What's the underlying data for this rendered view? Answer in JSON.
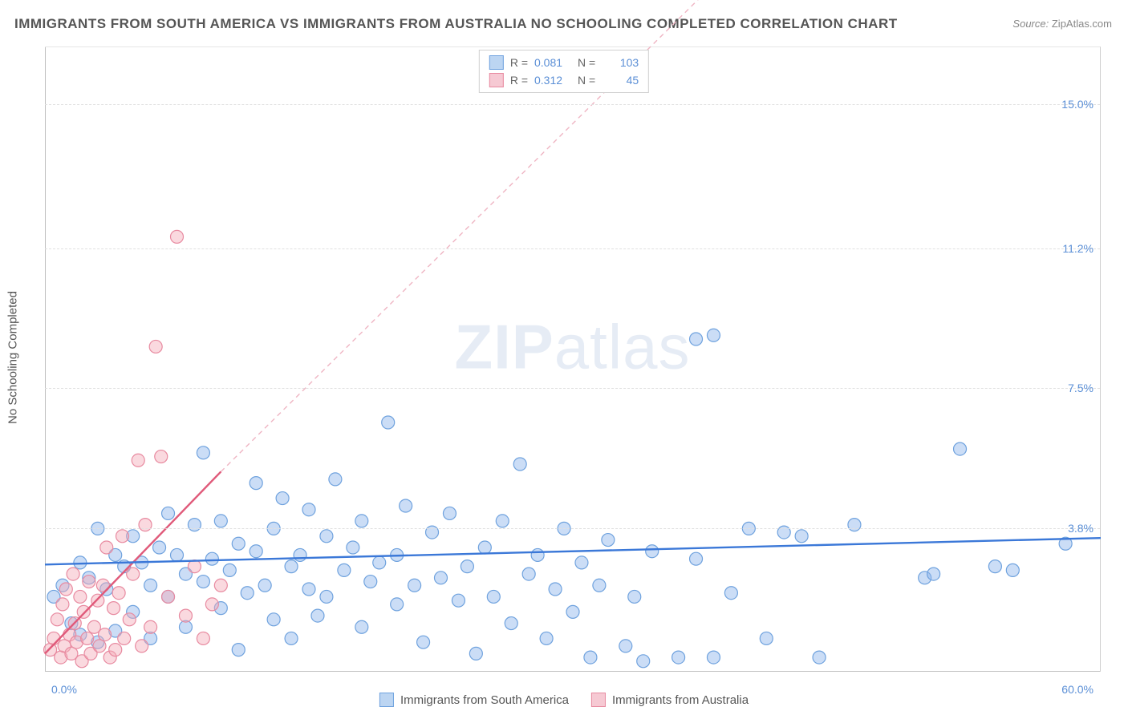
{
  "title": "IMMIGRANTS FROM SOUTH AMERICA VS IMMIGRANTS FROM AUSTRALIA NO SCHOOLING COMPLETED CORRELATION CHART",
  "source_label": "Source:",
  "source_value": "ZipAtlas.com",
  "watermark_bold": "ZIP",
  "watermark_rest": "atlas",
  "y_axis_label": "No Schooling Completed",
  "chart": {
    "type": "scatter-correlation",
    "background_color": "#ffffff",
    "grid_color": "#e0e0e0",
    "axis_color": "#c0c0c0",
    "tick_color": "#5b8fd6",
    "xlim": [
      0,
      60
    ],
    "ylim": [
      0,
      16.5
    ],
    "x_tick_min": "0.0%",
    "x_tick_max": "60.0%",
    "y_ticks": [
      {
        "v": 3.8,
        "label": "3.8%"
      },
      {
        "v": 7.5,
        "label": "7.5%"
      },
      {
        "v": 11.2,
        "label": "11.2%"
      },
      {
        "v": 15.0,
        "label": "15.0%"
      }
    ],
    "marker_radius": 8,
    "marker_stroke_width": 1.2,
    "series": [
      {
        "key": "south_america",
        "label": "Immigrants from South America",
        "fill": "rgba(140,180,235,0.45)",
        "stroke": "#6fa2de",
        "swatch_fill": "#bcd5f2",
        "swatch_border": "#6fa2de",
        "R": "0.081",
        "N": "103",
        "trend": {
          "x1": 0,
          "y1": 2.85,
          "x2": 60,
          "y2": 3.55,
          "dash": "none",
          "width": 2.4,
          "color": "#3b78d8"
        },
        "points": [
          [
            0.5,
            2.0
          ],
          [
            1,
            2.3
          ],
          [
            1.5,
            1.3
          ],
          [
            2,
            2.9
          ],
          [
            2,
            1.0
          ],
          [
            2.5,
            2.5
          ],
          [
            3,
            0.8
          ],
          [
            3,
            3.8
          ],
          [
            3.5,
            2.2
          ],
          [
            4,
            3.1
          ],
          [
            4,
            1.1
          ],
          [
            4.5,
            2.8
          ],
          [
            5,
            3.6
          ],
          [
            5,
            1.6
          ],
          [
            5.5,
            2.9
          ],
          [
            6,
            2.3
          ],
          [
            6,
            0.9
          ],
          [
            6.5,
            3.3
          ],
          [
            7,
            4.2
          ],
          [
            7,
            2.0
          ],
          [
            7.5,
            3.1
          ],
          [
            8,
            2.6
          ],
          [
            8,
            1.2
          ],
          [
            8.5,
            3.9
          ],
          [
            9,
            5.8
          ],
          [
            9,
            2.4
          ],
          [
            9.5,
            3.0
          ],
          [
            10,
            1.7
          ],
          [
            10,
            4.0
          ],
          [
            10.5,
            2.7
          ],
          [
            11,
            3.4
          ],
          [
            11,
            0.6
          ],
          [
            11.5,
            2.1
          ],
          [
            12,
            5.0
          ],
          [
            12,
            3.2
          ],
          [
            12.5,
            2.3
          ],
          [
            13,
            3.8
          ],
          [
            13,
            1.4
          ],
          [
            13.5,
            4.6
          ],
          [
            14,
            2.8
          ],
          [
            14,
            0.9
          ],
          [
            14.5,
            3.1
          ],
          [
            15,
            2.2
          ],
          [
            15,
            4.3
          ],
          [
            15.5,
            1.5
          ],
          [
            16,
            3.6
          ],
          [
            16,
            2.0
          ],
          [
            16.5,
            5.1
          ],
          [
            17,
            2.7
          ],
          [
            17.5,
            3.3
          ],
          [
            18,
            1.2
          ],
          [
            18,
            4.0
          ],
          [
            18.5,
            2.4
          ],
          [
            19,
            2.9
          ],
          [
            19.5,
            6.6
          ],
          [
            20,
            3.1
          ],
          [
            20,
            1.8
          ],
          [
            20.5,
            4.4
          ],
          [
            21,
            2.3
          ],
          [
            21.5,
            0.8
          ],
          [
            22,
            3.7
          ],
          [
            22.5,
            2.5
          ],
          [
            23,
            4.2
          ],
          [
            23.5,
            1.9
          ],
          [
            24,
            2.8
          ],
          [
            24.5,
            0.5
          ],
          [
            25,
            3.3
          ],
          [
            25.5,
            2.0
          ],
          [
            26,
            4.0
          ],
          [
            26.5,
            1.3
          ],
          [
            27,
            5.5
          ],
          [
            27.5,
            2.6
          ],
          [
            28,
            3.1
          ],
          [
            28.5,
            0.9
          ],
          [
            29,
            2.2
          ],
          [
            29.5,
            3.8
          ],
          [
            30,
            1.6
          ],
          [
            30.5,
            2.9
          ],
          [
            31,
            0.4
          ],
          [
            31.5,
            2.3
          ],
          [
            32,
            3.5
          ],
          [
            33,
            0.7
          ],
          [
            33.5,
            2.0
          ],
          [
            34,
            0.3
          ],
          [
            34.5,
            3.2
          ],
          [
            36,
            0.4
          ],
          [
            37,
            3.0
          ],
          [
            37,
            8.8
          ],
          [
            38,
            0.4
          ],
          [
            38,
            8.9
          ],
          [
            39,
            2.1
          ],
          [
            40,
            3.8
          ],
          [
            41,
            0.9
          ],
          [
            42,
            3.7
          ],
          [
            43,
            3.6
          ],
          [
            44,
            0.4
          ],
          [
            46,
            3.9
          ],
          [
            50,
            2.5
          ],
          [
            50.5,
            2.6
          ],
          [
            52,
            5.9
          ],
          [
            54,
            2.8
          ],
          [
            55,
            2.7
          ],
          [
            58,
            3.4
          ]
        ]
      },
      {
        "key": "australia",
        "label": "Immigrants from Australia",
        "fill": "rgba(245,170,185,0.45)",
        "stroke": "#e88aa0",
        "swatch_fill": "#f6c9d3",
        "swatch_border": "#e88aa0",
        "R": "0.312",
        "N": "45",
        "trend_solid": {
          "x1": 0,
          "y1": 0.5,
          "x2": 10,
          "y2": 5.3,
          "dash": "none",
          "width": 2.4,
          "color": "#e05a7a"
        },
        "trend_dash": {
          "x1": 10,
          "y1": 5.3,
          "x2": 42,
          "y2": 20.0,
          "dash": "6,5",
          "width": 1.4,
          "color": "#efb5c3"
        },
        "points": [
          [
            0.3,
            0.6
          ],
          [
            0.5,
            0.9
          ],
          [
            0.7,
            1.4
          ],
          [
            0.9,
            0.4
          ],
          [
            1.0,
            1.8
          ],
          [
            1.1,
            0.7
          ],
          [
            1.2,
            2.2
          ],
          [
            1.4,
            1.0
          ],
          [
            1.5,
            0.5
          ],
          [
            1.6,
            2.6
          ],
          [
            1.7,
            1.3
          ],
          [
            1.8,
            0.8
          ],
          [
            2.0,
            2.0
          ],
          [
            2.1,
            0.3
          ],
          [
            2.2,
            1.6
          ],
          [
            2.4,
            0.9
          ],
          [
            2.5,
            2.4
          ],
          [
            2.6,
            0.5
          ],
          [
            2.8,
            1.2
          ],
          [
            3.0,
            1.9
          ],
          [
            3.1,
            0.7
          ],
          [
            3.3,
            2.3
          ],
          [
            3.4,
            1.0
          ],
          [
            3.5,
            3.3
          ],
          [
            3.7,
            0.4
          ],
          [
            3.9,
            1.7
          ],
          [
            4.0,
            0.6
          ],
          [
            4.2,
            2.1
          ],
          [
            4.4,
            3.6
          ],
          [
            4.5,
            0.9
          ],
          [
            4.8,
            1.4
          ],
          [
            5.0,
            2.6
          ],
          [
            5.3,
            5.6
          ],
          [
            5.5,
            0.7
          ],
          [
            5.7,
            3.9
          ],
          [
            6.0,
            1.2
          ],
          [
            6.3,
            8.6
          ],
          [
            6.6,
            5.7
          ],
          [
            7.0,
            2.0
          ],
          [
            7.5,
            11.5
          ],
          [
            8.0,
            1.5
          ],
          [
            8.5,
            2.8
          ],
          [
            9.0,
            0.9
          ],
          [
            9.5,
            1.8
          ],
          [
            10.0,
            2.3
          ]
        ]
      }
    ],
    "legend_top_labels": {
      "R": "R =",
      "N": "N ="
    }
  }
}
